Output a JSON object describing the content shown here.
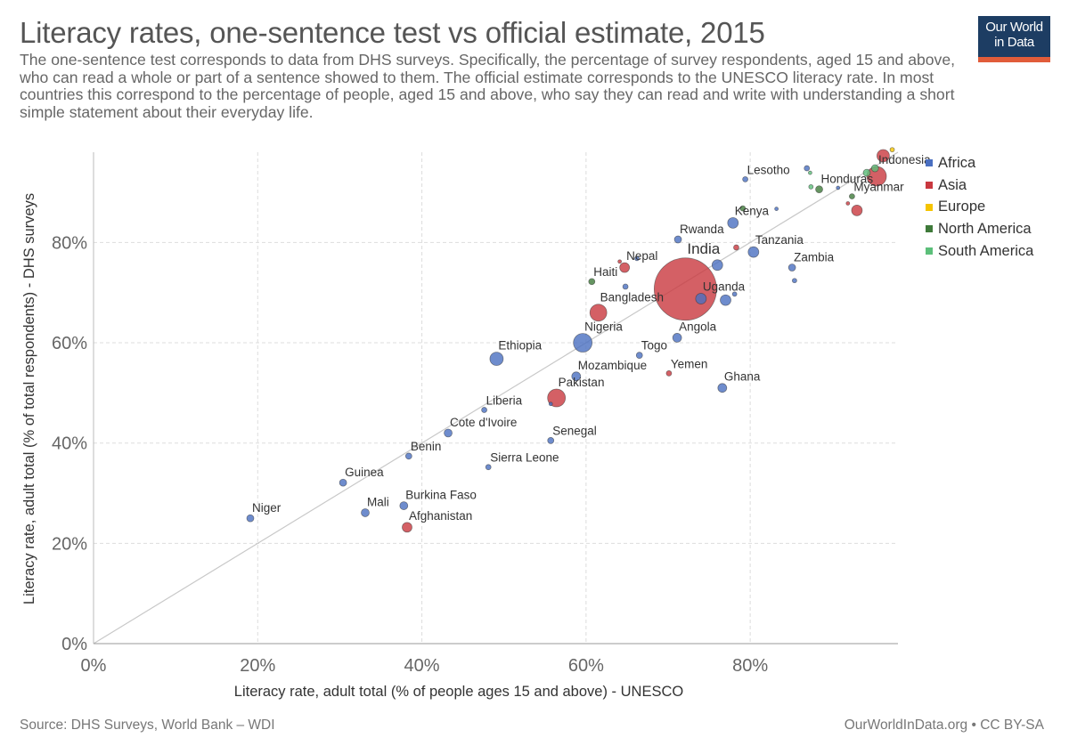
{
  "header": {
    "title": "Literacy rates, one-sentence test vs official estimate, 2015",
    "subtitle": "The one-sentence test corresponds to data from DHS surveys. Specifically, the percentage of survey respondents, aged 15 and above, who can read a whole or part of a sentence showed to them. The official estimate corresponds to the UNESCO literacy rate. In most countries this correspond to the percentage of people, aged 15 and above, who say they can read and write with understanding a short simple statement about their everyday life."
  },
  "logo": {
    "line1": "Our World",
    "line2": "in Data"
  },
  "legend": {
    "items": [
      {
        "label": "Africa",
        "color": "#4a6fc1"
      },
      {
        "label": "Asia",
        "color": "#c9383f"
      },
      {
        "label": "Europe",
        "color": "#f5c400"
      },
      {
        "label": "North America",
        "color": "#3f7a3a"
      },
      {
        "label": "South America",
        "color": "#5cbf7a"
      }
    ]
  },
  "footer": {
    "source": "Source: DHS Surveys, World Bank – WDI",
    "credit": "OurWorldInData.org • CC BY-SA"
  },
  "chart_data": {
    "type": "scatter",
    "xlabel": "Literacy rate, adult total (% of people ages 15 and above) - UNESCO",
    "ylabel": "Literacy rate, adult total (% of total respondents) - DHS surveys",
    "xlim": [
      0,
      98
    ],
    "ylim": [
      0,
      98
    ],
    "xticks": [
      0,
      20,
      40,
      60,
      80
    ],
    "yticks": [
      0,
      20,
      40,
      60,
      80
    ],
    "x_tick_labels": [
      "0%",
      "20%",
      "40%",
      "60%",
      "80%"
    ],
    "y_tick_labels": [
      "0%",
      "20%",
      "40%",
      "60%",
      "80%"
    ],
    "grid": true,
    "reference_line": "y = x",
    "bubble_size": "population",
    "legend_position": "right",
    "colors": {
      "Africa": "#4a6fc1",
      "Asia": "#c9383f",
      "Europe": "#f5c400",
      "North America": "#3f7a3a",
      "South America": "#5cbf7a"
    },
    "points": [
      {
        "name": "Niger",
        "x": 19.1,
        "y": 25.0,
        "region": "Africa",
        "size": 4,
        "label": "Niger"
      },
      {
        "name": "Guinea",
        "x": 30.4,
        "y": 32.1,
        "region": "Africa",
        "size": 4,
        "label": "Guinea"
      },
      {
        "name": "Mali",
        "x": 33.1,
        "y": 26.1,
        "region": "Africa",
        "size": 4.5,
        "label": "Mali"
      },
      {
        "name": "Burkina Faso",
        "x": 37.8,
        "y": 27.5,
        "region": "Africa",
        "size": 4.5,
        "label": "Burkina Faso"
      },
      {
        "name": "Afghanistan",
        "x": 38.2,
        "y": 23.2,
        "region": "Asia",
        "size": 5.5,
        "label": "Afghanistan"
      },
      {
        "name": "Benin",
        "x": 38.4,
        "y": 37.4,
        "region": "Africa",
        "size": 3.5,
        "label": "Benin"
      },
      {
        "name": "Cote d'Ivoire",
        "x": 43.2,
        "y": 42.0,
        "region": "Africa",
        "size": 4.5,
        "label": "Cote d'Ivoire"
      },
      {
        "name": "Liberia",
        "x": 47.6,
        "y": 46.6,
        "region": "Africa",
        "size": 3,
        "label": "Liberia"
      },
      {
        "name": "Sierra Leone",
        "x": 48.1,
        "y": 35.2,
        "region": "Africa",
        "size": 3,
        "label": "Sierra Leone"
      },
      {
        "name": "Ethiopia",
        "x": 49.1,
        "y": 56.8,
        "region": "Africa",
        "size": 7.5,
        "label": "Ethiopia"
      },
      {
        "name": "Senegal",
        "x": 55.7,
        "y": 40.5,
        "region": "Africa",
        "size": 3.5,
        "label": "Senegal"
      },
      {
        "name": "Pakistan",
        "x": 56.4,
        "y": 49.0,
        "region": "Asia",
        "size": 10,
        "label": "Pakistan"
      },
      {
        "name": "",
        "x": 55.7,
        "y": 47.8,
        "region": "Africa",
        "size": 2,
        "label": ""
      },
      {
        "name": "Mozambique",
        "x": 58.8,
        "y": 53.3,
        "region": "Africa",
        "size": 5,
        "label": "Mozambique"
      },
      {
        "name": "Nigeria",
        "x": 59.6,
        "y": 60.0,
        "region": "Africa",
        "size": 10.5,
        "label": "Nigeria"
      },
      {
        "name": "Haiti",
        "x": 60.7,
        "y": 72.2,
        "region": "North America",
        "size": 3.5,
        "label": "Haiti"
      },
      {
        "name": "Bangladesh",
        "x": 61.5,
        "y": 66.0,
        "region": "Asia",
        "size": 9.5,
        "label": "Bangladesh"
      },
      {
        "name": "Nepal",
        "x": 64.7,
        "y": 75.0,
        "region": "Asia",
        "size": 5.5,
        "label": "Nepal"
      },
      {
        "name": "",
        "x": 64.8,
        "y": 71.2,
        "region": "Africa",
        "size": 3,
        "label": ""
      },
      {
        "name": "",
        "x": 64.1,
        "y": 76.2,
        "region": "Asia",
        "size": 2,
        "label": ""
      },
      {
        "name": "",
        "x": 66.2,
        "y": 76.8,
        "region": "Africa",
        "size": 2.5,
        "label": ""
      },
      {
        "name": "Togo",
        "x": 66.5,
        "y": 57.5,
        "region": "Africa",
        "size": 3.5,
        "label": "Togo"
      },
      {
        "name": "Yemen",
        "x": 70.1,
        "y": 53.9,
        "region": "Asia",
        "size": 3,
        "label": "Yemen"
      },
      {
        "name": "Angola",
        "x": 71.1,
        "y": 61.0,
        "region": "Africa",
        "size": 5,
        "label": "Angola"
      },
      {
        "name": "Rwanda",
        "x": 71.2,
        "y": 80.6,
        "region": "Africa",
        "size": 4,
        "label": "Rwanda"
      },
      {
        "name": "India",
        "x": 72.1,
        "y": 70.7,
        "region": "Asia",
        "size": 35,
        "label": "India"
      },
      {
        "name": "Uganda",
        "x": 74.0,
        "y": 68.8,
        "region": "Africa",
        "size": 6,
        "label": "Uganda"
      },
      {
        "name": "",
        "x": 76.0,
        "y": 75.5,
        "region": "Africa",
        "size": 6,
        "label": ""
      },
      {
        "name": "Ghana",
        "x": 76.6,
        "y": 51.0,
        "region": "Africa",
        "size": 5,
        "label": "Ghana"
      },
      {
        "name": "",
        "x": 77.0,
        "y": 68.5,
        "region": "Africa",
        "size": 6,
        "label": ""
      },
      {
        "name": "",
        "x": 78.1,
        "y": 69.7,
        "region": "Africa",
        "size": 2.5,
        "label": ""
      },
      {
        "name": "Kenya",
        "x": 77.9,
        "y": 83.9,
        "region": "Africa",
        "size": 6,
        "label": "Kenya"
      },
      {
        "name": "",
        "x": 78.3,
        "y": 79.0,
        "region": "Asia",
        "size": 3,
        "label": ""
      },
      {
        "name": "",
        "x": 79.1,
        "y": 86.8,
        "region": "North America",
        "size": 3,
        "label": ""
      },
      {
        "name": "Lesotho",
        "x": 79.4,
        "y": 92.6,
        "region": "Africa",
        "size": 3,
        "label": "Lesotho"
      },
      {
        "name": "Tanzania",
        "x": 80.4,
        "y": 78.1,
        "region": "Africa",
        "size": 6,
        "label": "Tanzania"
      },
      {
        "name": "",
        "x": 83.2,
        "y": 86.7,
        "region": "Africa",
        "size": 2,
        "label": ""
      },
      {
        "name": "Zambia",
        "x": 85.1,
        "y": 75.0,
        "region": "Africa",
        "size": 4,
        "label": "Zambia"
      },
      {
        "name": "",
        "x": 85.4,
        "y": 72.4,
        "region": "Africa",
        "size": 2.5,
        "label": ""
      },
      {
        "name": "",
        "x": 86.9,
        "y": 94.8,
        "region": "Africa",
        "size": 3,
        "label": ""
      },
      {
        "name": "",
        "x": 87.3,
        "y": 93.9,
        "region": "South America",
        "size": 2,
        "label": ""
      },
      {
        "name": "",
        "x": 87.4,
        "y": 91.1,
        "region": "South America",
        "size": 2.5,
        "label": ""
      },
      {
        "name": "Honduras",
        "x": 88.4,
        "y": 90.6,
        "region": "North America",
        "size": 4,
        "label": "Honduras"
      },
      {
        "name": "",
        "x": 90.7,
        "y": 90.9,
        "region": "Africa",
        "size": 2,
        "label": ""
      },
      {
        "name": "Myanmar",
        "x": 92.4,
        "y": 89.2,
        "region": "North America",
        "size": 3,
        "label": "Myanmar"
      },
      {
        "name": "",
        "x": 91.9,
        "y": 87.8,
        "region": "Asia",
        "size": 2,
        "label": ""
      },
      {
        "name": "",
        "x": 93.0,
        "y": 86.4,
        "region": "Asia",
        "size": 6,
        "label": ""
      },
      {
        "name": "Indonesia",
        "x": 95.4,
        "y": 93.2,
        "region": "Asia",
        "size": 11,
        "label": "Indonesia"
      },
      {
        "name": "",
        "x": 94.2,
        "y": 93.9,
        "region": "South America",
        "size": 4,
        "label": ""
      },
      {
        "name": "",
        "x": 95.2,
        "y": 94.8,
        "region": "South America",
        "size": 4,
        "label": ""
      },
      {
        "name": "",
        "x": 96.2,
        "y": 97.3,
        "region": "Asia",
        "size": 7,
        "label": ""
      },
      {
        "name": "",
        "x": 97.3,
        "y": 98.5,
        "region": "Europe",
        "size": 2.5,
        "label": ""
      }
    ]
  }
}
